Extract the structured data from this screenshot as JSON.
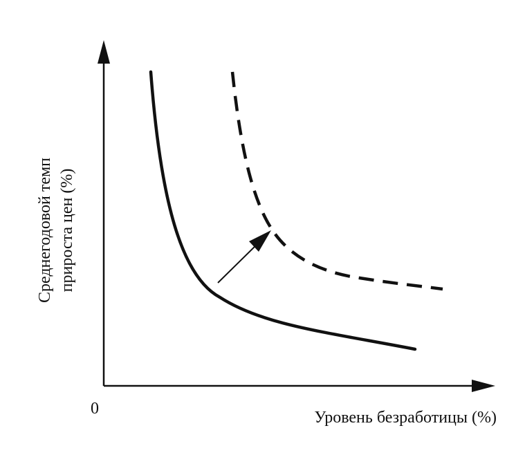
{
  "diagram": {
    "ylabel_line1": "Среднегодовой темп",
    "ylabel_line2": "прироста цен (%)",
    "xlabel": "Уровень безработицы (%)",
    "origin_label": "0",
    "curves": [
      {
        "style": "solid"
      },
      {
        "style": "dashed"
      }
    ],
    "shift_arrow": {
      "direction": "up-right"
    }
  }
}
